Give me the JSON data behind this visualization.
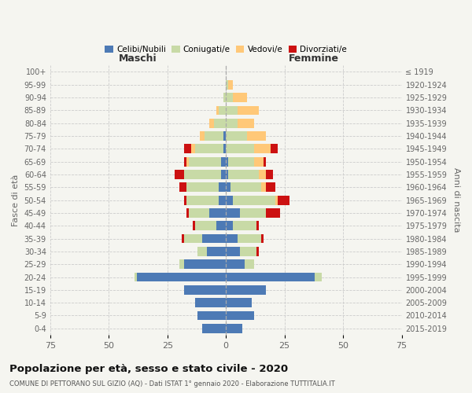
{
  "age_groups": [
    "0-4",
    "5-9",
    "10-14",
    "15-19",
    "20-24",
    "25-29",
    "30-34",
    "35-39",
    "40-44",
    "45-49",
    "50-54",
    "55-59",
    "60-64",
    "65-69",
    "70-74",
    "75-79",
    "80-84",
    "85-89",
    "90-94",
    "95-99",
    "100+"
  ],
  "birth_years": [
    "2015-2019",
    "2010-2014",
    "2005-2009",
    "2000-2004",
    "1995-1999",
    "1990-1994",
    "1985-1989",
    "1980-1984",
    "1975-1979",
    "1970-1974",
    "1965-1969",
    "1960-1964",
    "1955-1959",
    "1950-1954",
    "1945-1949",
    "1940-1944",
    "1935-1939",
    "1930-1934",
    "1925-1929",
    "1920-1924",
    "≤ 1919"
  ],
  "male": {
    "celibi": [
      10,
      12,
      13,
      18,
      38,
      18,
      8,
      10,
      4,
      7,
      3,
      3,
      2,
      2,
      1,
      1,
      0,
      0,
      0,
      0,
      0
    ],
    "coniugati": [
      0,
      0,
      0,
      0,
      1,
      2,
      4,
      8,
      9,
      9,
      14,
      14,
      16,
      14,
      12,
      8,
      5,
      3,
      1,
      0,
      0
    ],
    "vedovi": [
      0,
      0,
      0,
      0,
      0,
      0,
      0,
      0,
      0,
      0,
      0,
      0,
      0,
      1,
      2,
      2,
      2,
      1,
      0,
      0,
      0
    ],
    "divorziati": [
      0,
      0,
      0,
      0,
      0,
      0,
      0,
      1,
      1,
      1,
      1,
      3,
      4,
      1,
      3,
      0,
      0,
      0,
      0,
      0,
      0
    ]
  },
  "female": {
    "nubili": [
      7,
      12,
      11,
      17,
      38,
      8,
      6,
      5,
      3,
      6,
      3,
      2,
      1,
      1,
      0,
      0,
      0,
      0,
      0,
      0,
      0
    ],
    "coniugate": [
      0,
      0,
      0,
      0,
      3,
      4,
      7,
      10,
      10,
      11,
      18,
      13,
      13,
      11,
      12,
      9,
      5,
      5,
      3,
      1,
      0
    ],
    "vedove": [
      0,
      0,
      0,
      0,
      0,
      0,
      0,
      0,
      0,
      0,
      1,
      2,
      3,
      4,
      7,
      8,
      7,
      9,
      6,
      2,
      0
    ],
    "divorziate": [
      0,
      0,
      0,
      0,
      0,
      0,
      1,
      1,
      1,
      6,
      5,
      4,
      3,
      1,
      3,
      0,
      0,
      0,
      0,
      0,
      0
    ]
  },
  "color_celibi": "#4d7ab5",
  "color_coniugati": "#c8daa6",
  "color_vedovi": "#ffc878",
  "color_divorziati": "#cc1111",
  "bg_color": "#f5f5f0",
  "xlim": 75,
  "title": "Popolazione per età, sesso e stato civile - 2020",
  "subtitle": "COMUNE DI PETTORANO SUL GIZIO (AQ) - Dati ISTAT 1° gennaio 2020 - Elaborazione TUTTITALIA.IT",
  "ylabel": "Fasce di età",
  "ylabel2": "Anni di nascita",
  "xlabel_maschi": "Maschi",
  "xlabel_femmine": "Femmine"
}
